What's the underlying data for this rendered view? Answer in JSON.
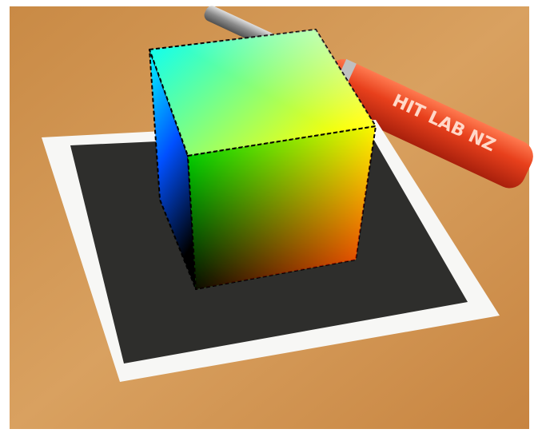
{
  "pen_label": "HIT LAB NZ"
}
